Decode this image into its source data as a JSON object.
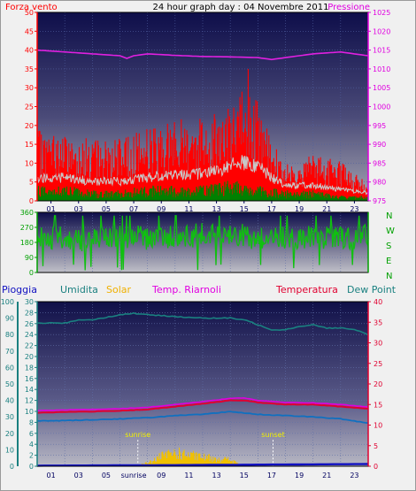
{
  "header": {
    "left_label": "Forza vento",
    "title": "24 hour graph day : 04 Novembre 2011",
    "right_label": "Pressione"
  },
  "colors": {
    "wind_gust": "#ff0000",
    "wind_avg": "#c8c8c8",
    "wind_low": "#008000",
    "pressure": "#e020e0",
    "direction": "#10c010",
    "humidity": "#1a8080",
    "solar": "#f0c000",
    "apparent_temp": "#e000e0",
    "temperature": "#e00030",
    "dew_point": "#1070c0",
    "rain": "#1010c0",
    "panel_top": "#121250",
    "panel_bottom": "#9a9aa8"
  },
  "chart_data": [
    {
      "name": "wind-pressure",
      "type": "line",
      "x_ticks": [
        "01",
        "03",
        "05",
        "07",
        "09",
        "11",
        "13",
        "15",
        "17",
        "19",
        "21",
        "23"
      ],
      "y_left_ticks": [
        "0",
        "5",
        "10",
        "15",
        "20",
        "25",
        "30",
        "35",
        "40",
        "45",
        "50"
      ],
      "y_left_lim": [
        0,
        50
      ],
      "y_right_ticks": [
        "975",
        "980",
        "985",
        "990",
        "995",
        "1000",
        "1005",
        "1010",
        "1015",
        "1020",
        "1025"
      ],
      "y_right_lim": [
        975,
        1025
      ],
      "grid": true,
      "pressure_hours": [
        0,
        2,
        4,
        6,
        6.5,
        7,
        8,
        10,
        12,
        14,
        16,
        17,
        18,
        20,
        22,
        24
      ],
      "pressure_values": [
        1015,
        1014.5,
        1014,
        1013.5,
        1012.8,
        1013.5,
        1014,
        1013.6,
        1013.3,
        1013.2,
        1013,
        1012.5,
        1013,
        1014,
        1014.5,
        1013.5
      ],
      "gust_envelope_hours": [
        0,
        2,
        4,
        6,
        8,
        10,
        12,
        14,
        15,
        16,
        17,
        18,
        20,
        22,
        23,
        24
      ],
      "gust_envelope_values": [
        17,
        16,
        15,
        15,
        18,
        20,
        21,
        23,
        27,
        24,
        14,
        10,
        11,
        10,
        7,
        4
      ],
      "avg_envelope_hours": [
        0,
        2,
        4,
        6,
        8,
        10,
        12,
        14,
        15,
        16,
        17,
        18,
        20,
        22,
        24
      ],
      "avg_envelope_values": [
        6,
        6,
        5,
        5,
        6,
        7,
        7,
        9,
        10,
        9,
        6,
        4,
        4,
        3,
        2
      ],
      "low_envelope_hours": [
        0,
        2,
        4,
        6,
        8,
        10,
        12,
        14,
        16,
        18,
        20,
        22,
        24
      ],
      "low_envelope_values": [
        3,
        3,
        2,
        2,
        3,
        3,
        3,
        4,
        3,
        2,
        2,
        1,
        1
      ],
      "peak_gust": 35
    },
    {
      "name": "wind-direction",
      "type": "line",
      "y_ticks": [
        "0",
        "90",
        "180",
        "270",
        "360"
      ],
      "y_lim": [
        0,
        360
      ],
      "right_labels": [
        "N",
        "W",
        "S",
        "E",
        "N"
      ],
      "direction_hours": [
        0,
        3,
        6,
        9,
        12,
        15,
        18,
        21,
        24
      ],
      "direction_values": [
        210,
        200,
        205,
        215,
        220,
        215,
        200,
        210,
        215
      ]
    },
    {
      "name": "temp-humidity",
      "type": "line",
      "legend": [
        "Pioggia",
        "Umidita",
        "Solar",
        "Temp. Riarnoli",
        "Temperatura",
        "Dew Point"
      ],
      "x_ticks": [
        "01",
        "03",
        "05",
        "sunrise",
        "09",
        "11",
        "13",
        "15",
        "17",
        "19",
        "21",
        "23"
      ],
      "y_left_outer_ticks": [
        "0",
        "10",
        "20",
        "30",
        "40",
        "50",
        "60",
        "70",
        "80",
        "90",
        "100"
      ],
      "y_left_outer_lim": [
        0,
        100
      ],
      "y_left_inner_ticks": [
        "0",
        "2",
        "4",
        "6",
        "8",
        "10",
        "12",
        "14",
        "16",
        "18",
        "20",
        "22",
        "24",
        "26",
        "28",
        "30"
      ],
      "y_left_inner_lim": [
        0,
        30
      ],
      "y_right_ticks": [
        "0",
        "5",
        "10",
        "15",
        "20",
        "25",
        "30",
        "35",
        "40"
      ],
      "y_right_lim": [
        0,
        40
      ],
      "humidity_hours": [
        0,
        2,
        3,
        4,
        6,
        7,
        8,
        10,
        12,
        14,
        15,
        16,
        17,
        18,
        19,
        20,
        21,
        22,
        23,
        24
      ],
      "humidity_values": [
        87,
        87,
        89,
        89,
        92,
        93,
        92,
        91,
        90,
        90,
        89,
        86,
        83,
        83,
        85,
        86,
        84,
        84,
        83,
        80
      ],
      "temp_hours": [
        0,
        2,
        4,
        6,
        8,
        10,
        12,
        14,
        15,
        16,
        18,
        20,
        22,
        24
      ],
      "temp_values": [
        13,
        13.2,
        13.3,
        13.5,
        13.8,
        14.5,
        15.2,
        16,
        16,
        15.5,
        15,
        15,
        14.5,
        14
      ],
      "apparent_hours": [
        0,
        2,
        4,
        6,
        8,
        10,
        12,
        14,
        15,
        16,
        18,
        20,
        22,
        24
      ],
      "apparent_values": [
        13.5,
        13.7,
        13.8,
        14,
        14.3,
        15,
        15.7,
        16.5,
        16.6,
        16,
        15.5,
        15.4,
        15,
        14.4
      ],
      "dew_hours": [
        0,
        2,
        4,
        6,
        8,
        10,
        12,
        14,
        16,
        18,
        20,
        22,
        24
      ],
      "dew_values": [
        11,
        11.1,
        11.3,
        11.5,
        11.8,
        12.3,
        12.6,
        13.3,
        12.6,
        12.3,
        12,
        11.5,
        10.5
      ],
      "solar_envelope_hours": [
        7,
        8,
        9,
        10,
        11,
        12,
        13,
        14,
        15
      ],
      "solar_envelope_values": [
        0.2,
        0.7,
        2.2,
        3.0,
        2.5,
        2.0,
        1.8,
        1.4,
        0
      ],
      "rain_total": 0.4,
      "sunrise_hour": 7.3,
      "sunset_hour": 17.1,
      "sunrise_label": "sunrise",
      "sunset_label": "sunset"
    }
  ]
}
